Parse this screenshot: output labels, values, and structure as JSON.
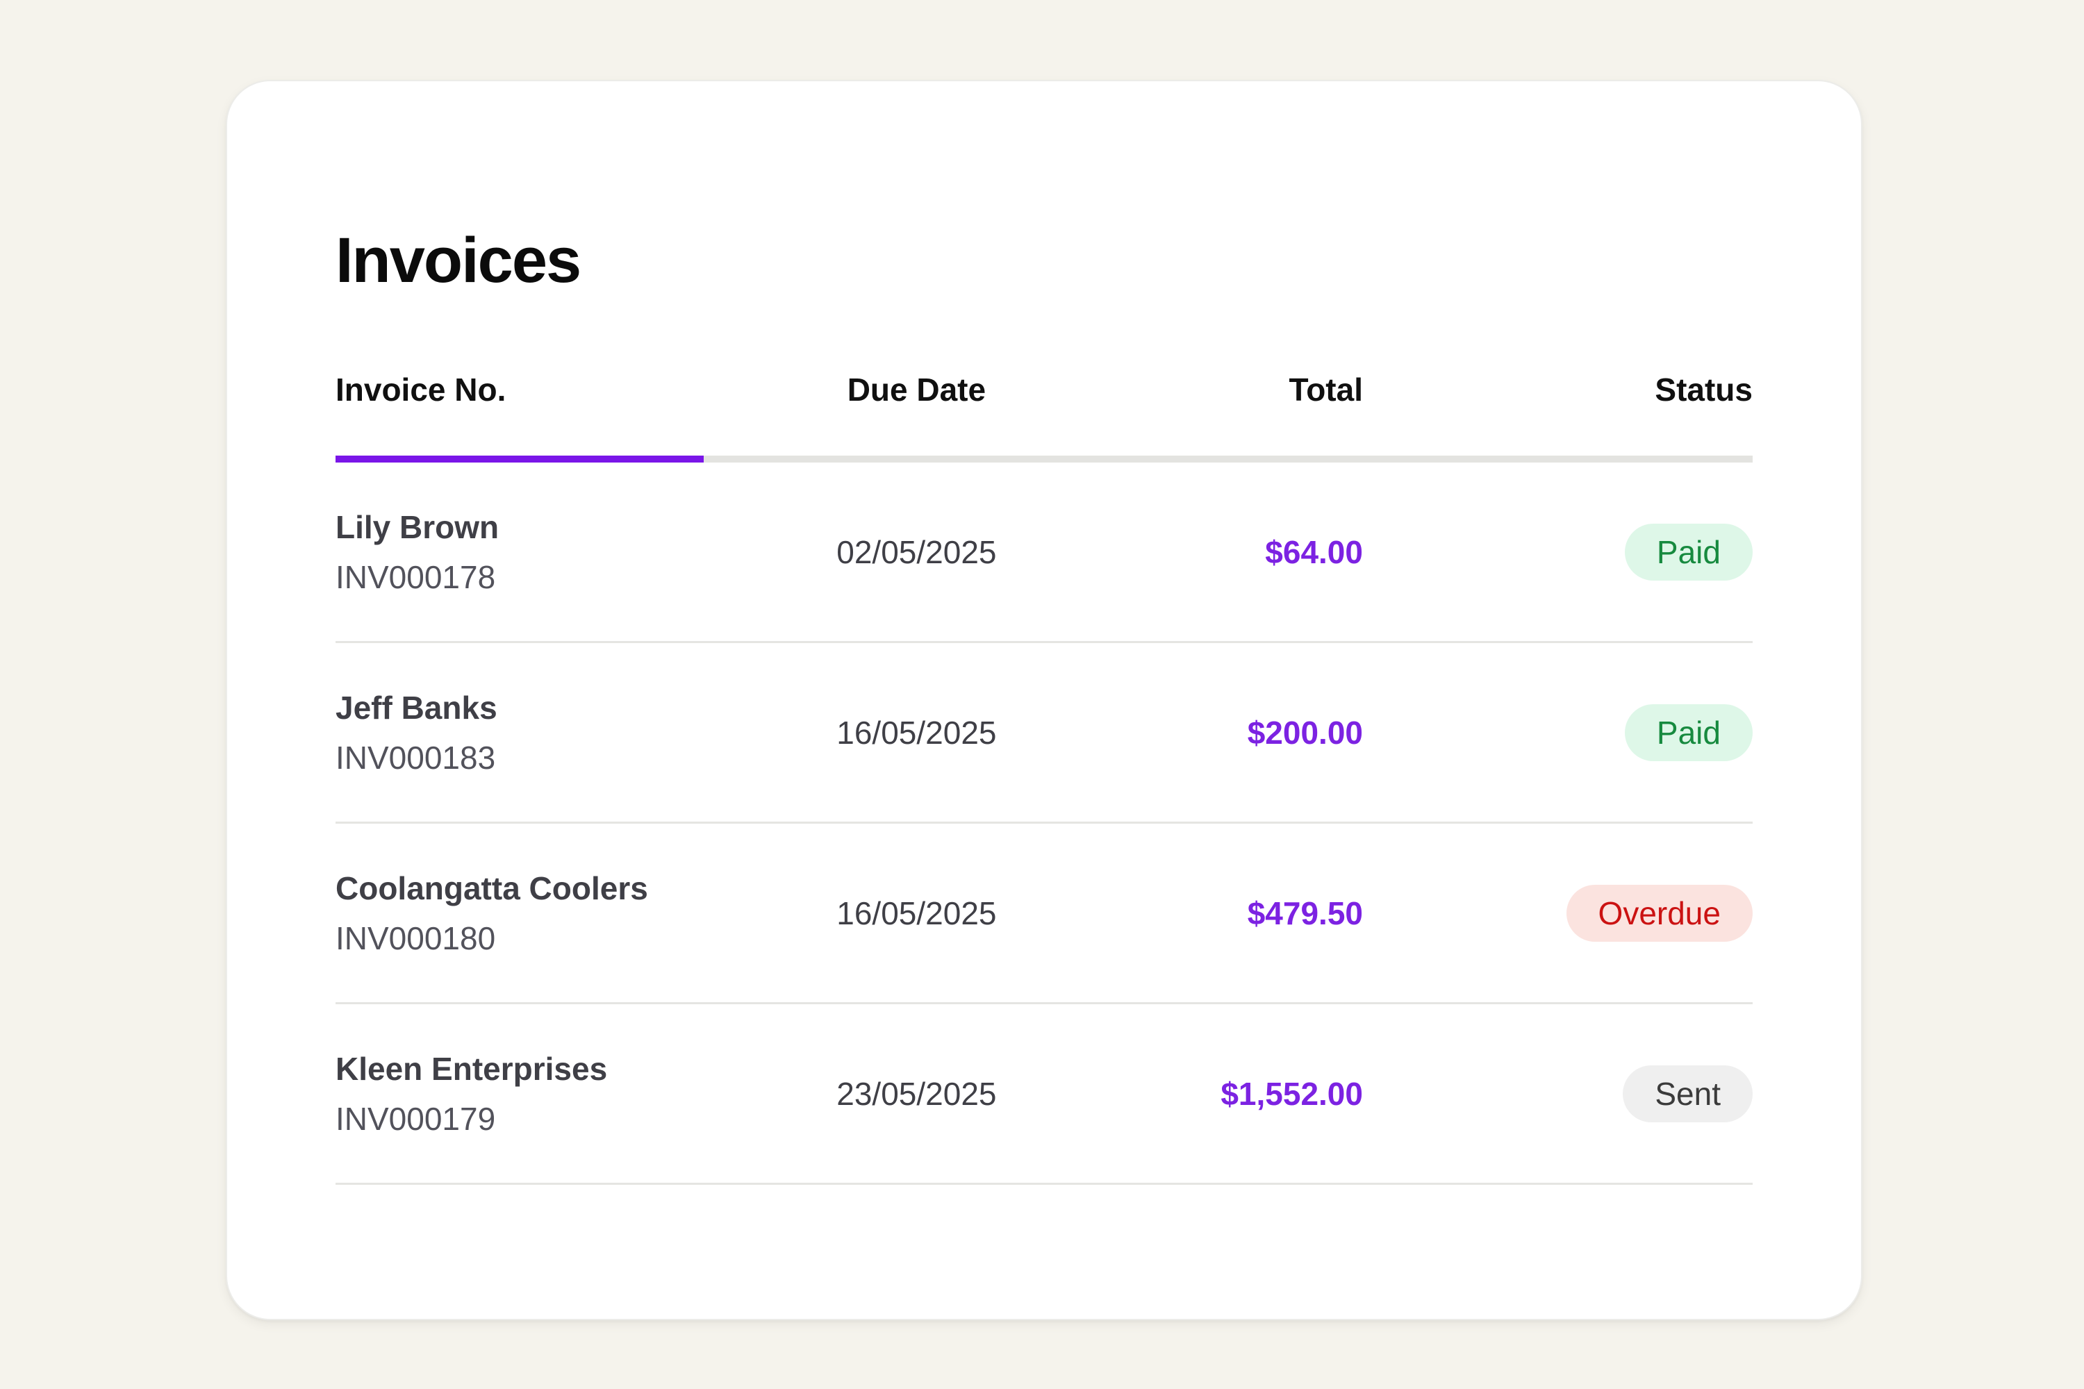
{
  "card": {
    "title": "Invoices"
  },
  "table": {
    "columns": [
      {
        "key": "invoice",
        "label": "Invoice No.",
        "align": "left",
        "active": true
      },
      {
        "key": "due",
        "label": "Due Date",
        "align": "center",
        "active": false
      },
      {
        "key": "total",
        "label": "Total",
        "align": "right",
        "active": false
      },
      {
        "key": "status",
        "label": "Status",
        "align": "right",
        "active": false
      }
    ],
    "rows": [
      {
        "name": "Lily Brown",
        "invoice_no": "INV000178",
        "due_date": "02/05/2025",
        "total": "$64.00",
        "status": "Paid",
        "status_variant": "paid"
      },
      {
        "name": "Jeff Banks",
        "invoice_no": "INV000183",
        "due_date": "16/05/2025",
        "total": "$200.00",
        "status": "Paid",
        "status_variant": "paid"
      },
      {
        "name": "Coolangatta Coolers",
        "invoice_no": "INV000180",
        "due_date": "16/05/2025",
        "total": "$479.50",
        "status": "Overdue",
        "status_variant": "overdue"
      },
      {
        "name": "Kleen Enterprises",
        "invoice_no": "INV000179",
        "due_date": "23/05/2025",
        "total": "$1,552.00",
        "status": "Sent",
        "status_variant": "sent"
      }
    ]
  },
  "colors": {
    "bg": "#F5F3EC",
    "card-bg": "#FFFFFF",
    "accent": "#7A16E8",
    "accent-text": "#7C22E2",
    "paid-bg": "#DEF7E8",
    "paid-text": "#178A3F",
    "overdue-bg": "#FBE3DF",
    "overdue-text": "#CB1212",
    "sent-bg": "#EFEFEF",
    "sent-text": "#3B3B3B"
  }
}
